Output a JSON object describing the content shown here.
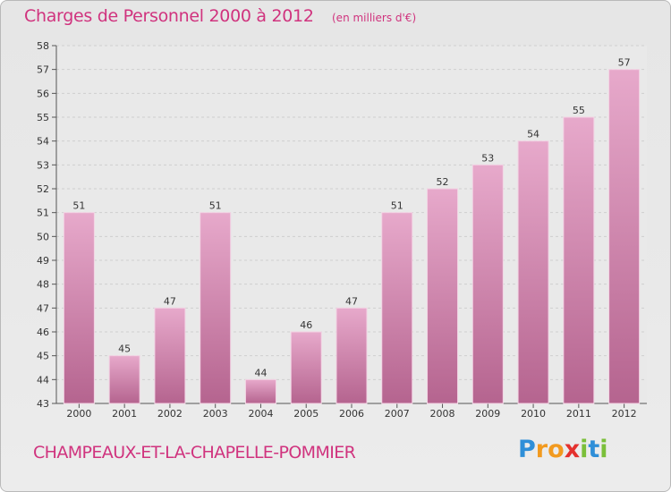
{
  "header": {
    "title": "Charges de Personnel 2000 à 2012",
    "subtitle": "(en milliers d'€)"
  },
  "footer": {
    "commune": "CHAMPEAUX-ET-LA-CHAPELLE-POMMIER",
    "logo": {
      "letters": [
        "P",
        "r",
        "o",
        "x",
        "i",
        "t",
        "i"
      ],
      "colors": [
        "#2f8fd8",
        "#f29a1f",
        "#f29a1f",
        "#e4312e",
        "#7bbf3a",
        "#2f8fd8",
        "#7bbf3a"
      ]
    }
  },
  "chart_data": {
    "type": "bar",
    "title": "Charges de Personnel 2000 à 2012",
    "subtitle": "(en milliers d'€)",
    "categories": [
      "2000",
      "2001",
      "2002",
      "2003",
      "2004",
      "2005",
      "2006",
      "2007",
      "2008",
      "2009",
      "2010",
      "2011",
      "2012"
    ],
    "values": [
      51,
      45,
      47,
      51,
      44,
      46,
      47,
      51,
      52,
      53,
      54,
      55,
      57
    ],
    "ylim": [
      43,
      58
    ],
    "yticks": [
      43,
      44,
      45,
      46,
      47,
      48,
      49,
      50,
      51,
      52,
      53,
      54,
      55,
      56,
      57,
      58
    ],
    "grid": true,
    "bar_color": "#c45b96"
  }
}
